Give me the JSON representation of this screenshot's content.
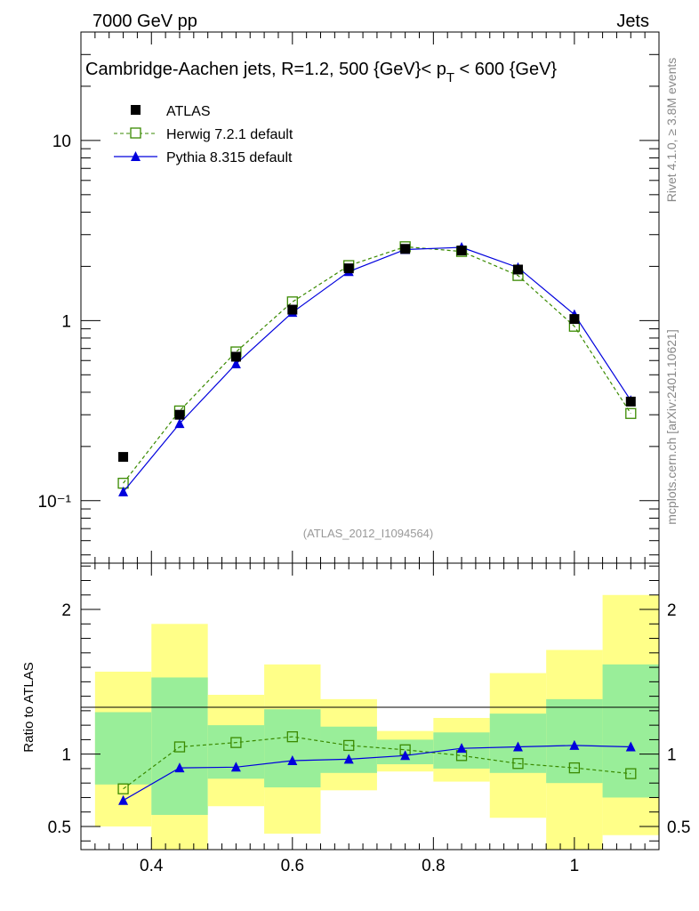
{
  "header": {
    "left": "7000 GeV pp",
    "right": "Jets",
    "title": "Cambridge-Aachen jets, R=1.2,  500 {GeV}< p",
    "title_sub": "T",
    "title_end": " < 600 {GeV}",
    "side_top": "Rivet 4.1.0, ≥ 3.8M events",
    "side_bottom": "mcplots.cern.ch [arXiv:2401.10621]",
    "watermark": "(ATLAS_2012_I1094564)"
  },
  "legend": [
    {
      "name": "ATLAS",
      "color": "#000000",
      "marker": "square-filled",
      "line": "none"
    },
    {
      "name": "Herwig 7.2.1 default",
      "color": "#3a8a00",
      "marker": "square-open",
      "line": "dashed"
    },
    {
      "name": "Pythia 8.315 default",
      "color": "#0000dd",
      "marker": "triangle",
      "line": "solid"
    }
  ],
  "chart_data": [
    {
      "type": "line",
      "panel": "main",
      "yscale": "log",
      "xlim": [
        0.3,
        1.12
      ],
      "ylim": [
        0.045,
        40
      ],
      "ytick_labels": [
        "10",
        "1",
        "10⁻¹"
      ],
      "x": [
        0.36,
        0.44,
        0.52,
        0.6,
        0.68,
        0.76,
        0.84,
        0.92,
        1.0,
        1.08
      ],
      "series": [
        {
          "name": "ATLAS",
          "values": [
            0.175,
            0.3,
            0.63,
            1.15,
            1.95,
            2.5,
            2.45,
            1.92,
            1.02,
            0.355
          ]
        },
        {
          "name": "Herwig 7.2.1 default",
          "values": [
            0.125,
            0.315,
            0.67,
            1.27,
            2.02,
            2.57,
            2.42,
            1.78,
            0.93,
            0.305
          ]
        },
        {
          "name": "Pythia 8.315 default",
          "values": [
            0.112,
            0.268,
            0.575,
            1.11,
            1.87,
            2.48,
            2.55,
            1.97,
            1.08,
            0.36
          ]
        }
      ]
    },
    {
      "type": "line",
      "panel": "ratio",
      "xlabel": "",
      "ylabel": "Ratio to ATLAS",
      "xlim": [
        0.3,
        1.12
      ],
      "ylim": [
        0.34,
        2.32
      ],
      "xtick_labels": [
        "0.4",
        "0.6",
        "0.8",
        "1"
      ],
      "ytick_labels": [
        "2",
        "1",
        "0.5"
      ],
      "bin_edges": [
        0.32,
        0.4,
        0.48,
        0.56,
        0.64,
        0.72,
        0.8,
        0.88,
        0.96,
        1.04,
        1.12
      ],
      "band_inner": {
        "name": "stat",
        "color": "#99ee99",
        "lo": [
          0.79,
          0.58,
          0.83,
          0.77,
          0.87,
          0.93,
          0.9,
          0.87,
          0.8,
          0.7
        ],
        "hi": [
          1.29,
          1.53,
          1.2,
          1.31,
          1.19,
          1.1,
          1.15,
          1.28,
          1.38,
          1.62
        ]
      },
      "band_outer": {
        "name": "total",
        "color": "#ffff88",
        "lo": [
          0.5,
          0.33,
          0.64,
          0.45,
          0.75,
          0.88,
          0.81,
          0.56,
          0.33,
          0.44
        ],
        "hi": [
          1.57,
          1.9,
          1.41,
          1.62,
          1.38,
          1.16,
          1.25,
          1.56,
          1.72,
          2.1
        ]
      },
      "series": [
        {
          "name": "Herwig 7.2.1 default",
          "values": [
            0.76,
            1.05,
            1.08,
            1.12,
            1.06,
            1.03,
            0.99,
            0.935,
            0.905,
            0.865
          ]
        },
        {
          "name": "Pythia 8.315 default",
          "values": [
            0.68,
            0.905,
            0.91,
            0.955,
            0.965,
            0.99,
            1.04,
            1.05,
            1.06,
            1.05
          ]
        }
      ]
    }
  ]
}
